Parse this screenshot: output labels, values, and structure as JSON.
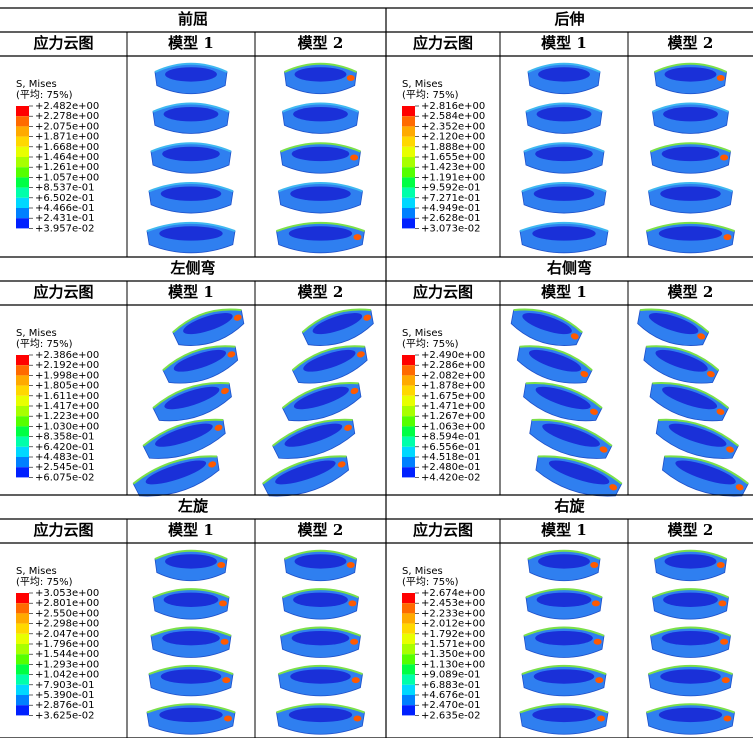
{
  "panels": [
    {
      "title": "前屈",
      "headers": [
        "应力云图",
        "模型 1",
        "模型 2"
      ],
      "legend": {
        "title": "S, Mises",
        "subtitle": "(平均: 75%)",
        "values": [
          "+2.482e+00",
          "+2.278e+00",
          "+2.075e+00",
          "+1.871e+00",
          "+1.668e+00",
          "+1.464e+00",
          "+1.261e+00",
          "+1.057e+00",
          "+8.537e-01",
          "+6.502e-01",
          "+4.466e-01",
          "+2.431e-01",
          "+3.957e-02"
        ]
      }
    },
    {
      "title": "后伸",
      "headers": [
        "应力云图",
        "模型 1",
        "模型 2"
      ],
      "legend": {
        "title": "S, Mises",
        "subtitle": "(平均: 75%)",
        "values": [
          "+2.816e+00",
          "+2.584e+00",
          "+2.352e+00",
          "+2.120e+00",
          "+1.888e+00",
          "+1.655e+00",
          "+1.423e+00",
          "+1.191e+00",
          "+9.592e-01",
          "+7.271e-01",
          "+4.949e-01",
          "+2.628e-01",
          "+3.073e-02"
        ]
      }
    },
    {
      "title": "左侧弯",
      "headers": [
        "应力云图",
        "模型 1",
        "模型 2"
      ],
      "legend": {
        "title": "S, Mises",
        "subtitle": "(平均: 75%)",
        "values": [
          "+2.386e+00",
          "+2.192e+00",
          "+1.998e+00",
          "+1.805e+00",
          "+1.611e+00",
          "+1.417e+00",
          "+1.223e+00",
          "+1.030e+00",
          "+8.358e-01",
          "+6.420e-01",
          "+4.483e-01",
          "+2.545e-01",
          "+6.075e-02"
        ]
      }
    },
    {
      "title": "右侧弯",
      "headers": [
        "应力云图",
        "模型 1",
        "模型 2"
      ],
      "legend": {
        "title": "S, Mises",
        "subtitle": "(平均: 75%)",
        "values": [
          "+2.490e+00",
          "+2.286e+00",
          "+2.082e+00",
          "+1.878e+00",
          "+1.675e+00",
          "+1.471e+00",
          "+1.267e+00",
          "+1.063e+00",
          "+8.594e-01",
          "+6.556e-01",
          "+4.518e-01",
          "+2.480e-01",
          "+4.420e-02"
        ]
      }
    },
    {
      "title": "左旋",
      "headers": [
        "应力云图",
        "模型 1",
        "模型 2"
      ],
      "legend": {
        "title": "S, Mises",
        "subtitle": "(平均: 75%)",
        "values": [
          "+3.053e+00",
          "+2.801e+00",
          "+2.550e+00",
          "+2.298e+00",
          "+2.047e+00",
          "+1.796e+00",
          "+1.544e+00",
          "+1.293e+00",
          "+1.042e+00",
          "+7.903e-01",
          "+5.390e-01",
          "+2.876e-01",
          "+3.625e-02"
        ]
      }
    },
    {
      "title": "右旋",
      "headers": [
        "应力云图",
        "模型 1",
        "模型 2"
      ],
      "legend": {
        "title": "S, Mises",
        "subtitle": "(平均: 75%)",
        "values": [
          "+2.674e+00",
          "+2.453e+00",
          "+2.233e+00",
          "+2.012e+00",
          "+1.792e+00",
          "+1.571e+00",
          "+1.350e+00",
          "+1.130e+00",
          "+9.089e-01",
          "+6.883e-01",
          "+4.676e-01",
          "+2.470e-01",
          "+2.635e-02"
        ]
      }
    }
  ]
}
